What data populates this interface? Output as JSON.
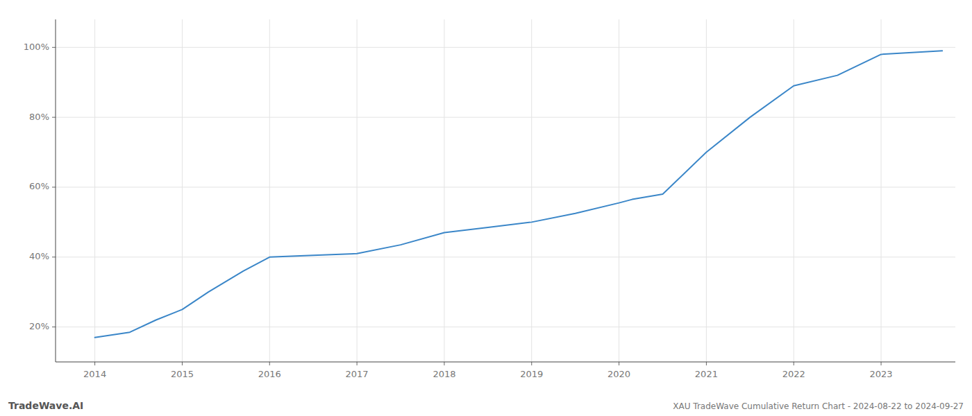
{
  "chart_data": {
    "type": "line",
    "title": "XAU TradeWave Cumulative Return Chart - 2024-08-22 to 2024-09-27",
    "annotations": [
      "TradeWave.AI"
    ],
    "x": [
      2014.0,
      2014.4,
      2014.7,
      2015.0,
      2015.3,
      2015.7,
      2016.0,
      2016.5,
      2017.0,
      2017.5,
      2018.0,
      2018.5,
      2019.0,
      2019.5,
      2020.0,
      2020.15,
      2020.5,
      2021.0,
      2021.5,
      2022.0,
      2022.5,
      2023.0,
      2023.7
    ],
    "values": [
      17.0,
      18.5,
      22.0,
      25.0,
      30.0,
      36.0,
      40.0,
      40.5,
      41.0,
      43.5,
      47.0,
      48.5,
      50.0,
      52.5,
      55.5,
      56.5,
      58.0,
      70.0,
      80.0,
      89.0,
      92.0,
      98.0,
      99.0
    ],
    "color": "#3a86c8",
    "xlim": [
      2013.55,
      2023.85
    ],
    "ylim": [
      10,
      108
    ],
    "xticks": [
      2014,
      2015,
      2016,
      2017,
      2018,
      2019,
      2020,
      2021,
      2022,
      2023
    ],
    "yticks": [
      {
        "value": 20,
        "label": "20%"
      },
      {
        "value": 40,
        "label": "40%"
      },
      {
        "value": 60,
        "label": "60%"
      },
      {
        "value": 80,
        "label": "80%"
      },
      {
        "value": 100,
        "label": "100%"
      }
    ],
    "grid": true
  }
}
